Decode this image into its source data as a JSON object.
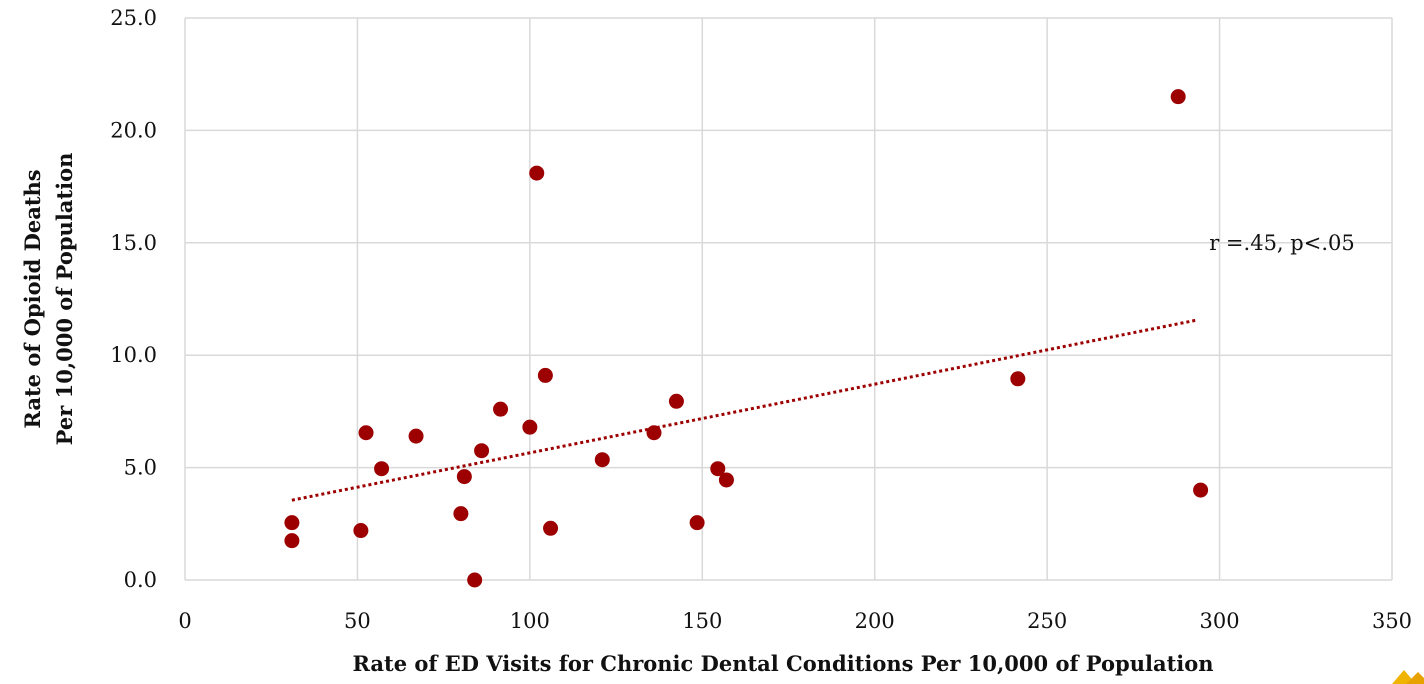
{
  "chart_data": {
    "type": "scatter",
    "title": "",
    "xlabel": "Rate of ED Visits for Chronic Dental Conditions Per 10,000 of Population",
    "ylabel_line1": "Rate of Opioid Deaths",
    "ylabel_line2": "Per 10,000 of Population",
    "xlim": [
      0,
      350
    ],
    "ylim": [
      0,
      25
    ],
    "x_ticks": [
      0,
      50,
      100,
      150,
      200,
      250,
      300,
      350
    ],
    "y_ticks": [
      0,
      5,
      10,
      15,
      20,
      25
    ],
    "x_tick_labels": [
      "0",
      "50",
      "100",
      "150",
      "200",
      "250",
      "300",
      "350"
    ],
    "y_tick_labels": [
      "0.0",
      "5.0",
      "10.0",
      "15.0",
      "20.0",
      "25.0"
    ],
    "grid": true,
    "marker_color": "#9c0000",
    "trendline_color": "#9c0000",
    "series": [
      {
        "points": [
          {
            "x": 31,
            "y": 2.55
          },
          {
            "x": 31,
            "y": 1.75
          },
          {
            "x": 51,
            "y": 2.2
          },
          {
            "x": 52.5,
            "y": 6.55
          },
          {
            "x": 57,
            "y": 4.95
          },
          {
            "x": 67,
            "y": 6.4
          },
          {
            "x": 80,
            "y": 2.95
          },
          {
            "x": 81,
            "y": 4.6
          },
          {
            "x": 84,
            "y": 0.0
          },
          {
            "x": 86,
            "y": 5.75
          },
          {
            "x": 91.5,
            "y": 7.6
          },
          {
            "x": 100,
            "y": 6.8
          },
          {
            "x": 102,
            "y": 18.1
          },
          {
            "x": 104.5,
            "y": 9.1
          },
          {
            "x": 106,
            "y": 2.3
          },
          {
            "x": 121,
            "y": 5.35
          },
          {
            "x": 136,
            "y": 6.55
          },
          {
            "x": 142.5,
            "y": 7.95
          },
          {
            "x": 148.5,
            "y": 2.55
          },
          {
            "x": 154.5,
            "y": 4.95
          },
          {
            "x": 157,
            "y": 4.45
          },
          {
            "x": 241.5,
            "y": 8.95
          },
          {
            "x": 288,
            "y": 21.5
          },
          {
            "x": 294.5,
            "y": 4.0
          }
        ]
      }
    ],
    "trendline": {
      "x_start": 31,
      "y_start": 3.55,
      "x_end": 293,
      "y_end": 11.55
    },
    "annotation": {
      "text": "r =.45, p<.05",
      "x": 297,
      "y": 15.0
    }
  }
}
